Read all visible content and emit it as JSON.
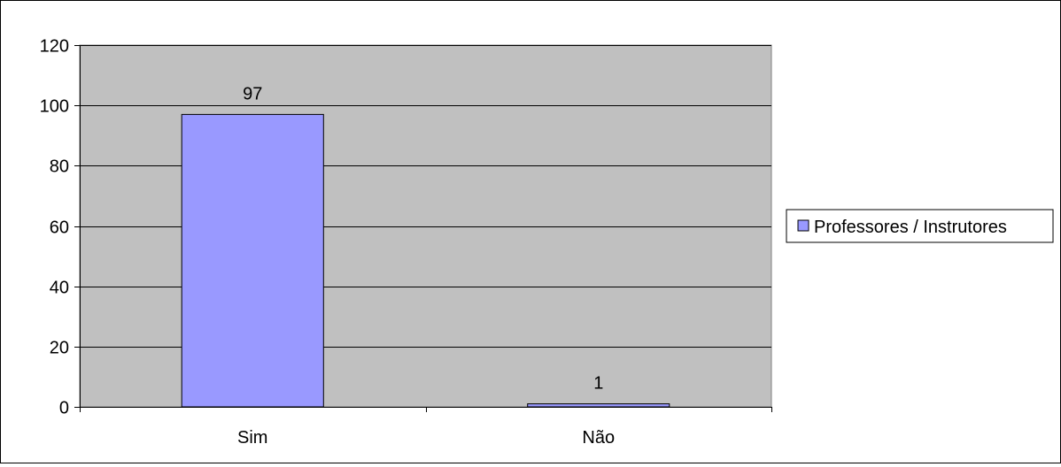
{
  "chart_data": {
    "type": "bar",
    "categories": [
      "Sim",
      "Não"
    ],
    "series": [
      {
        "name": "Professores / Instrutores",
        "values": [
          97,
          1
        ]
      }
    ],
    "data_labels": [
      "97",
      "1"
    ],
    "ylim": [
      0,
      120
    ],
    "yticks": [
      0,
      20,
      40,
      60,
      80,
      100,
      120
    ],
    "ytick_labels": [
      "0",
      "20",
      "40",
      "60",
      "80",
      "100",
      "120"
    ],
    "grid": true,
    "legend_position": "right",
    "colors": {
      "plot_background": "#c0c0c0",
      "bar_fill": "#9999ff",
      "bar_stroke": "#000000",
      "gridline": "#000000"
    }
  }
}
